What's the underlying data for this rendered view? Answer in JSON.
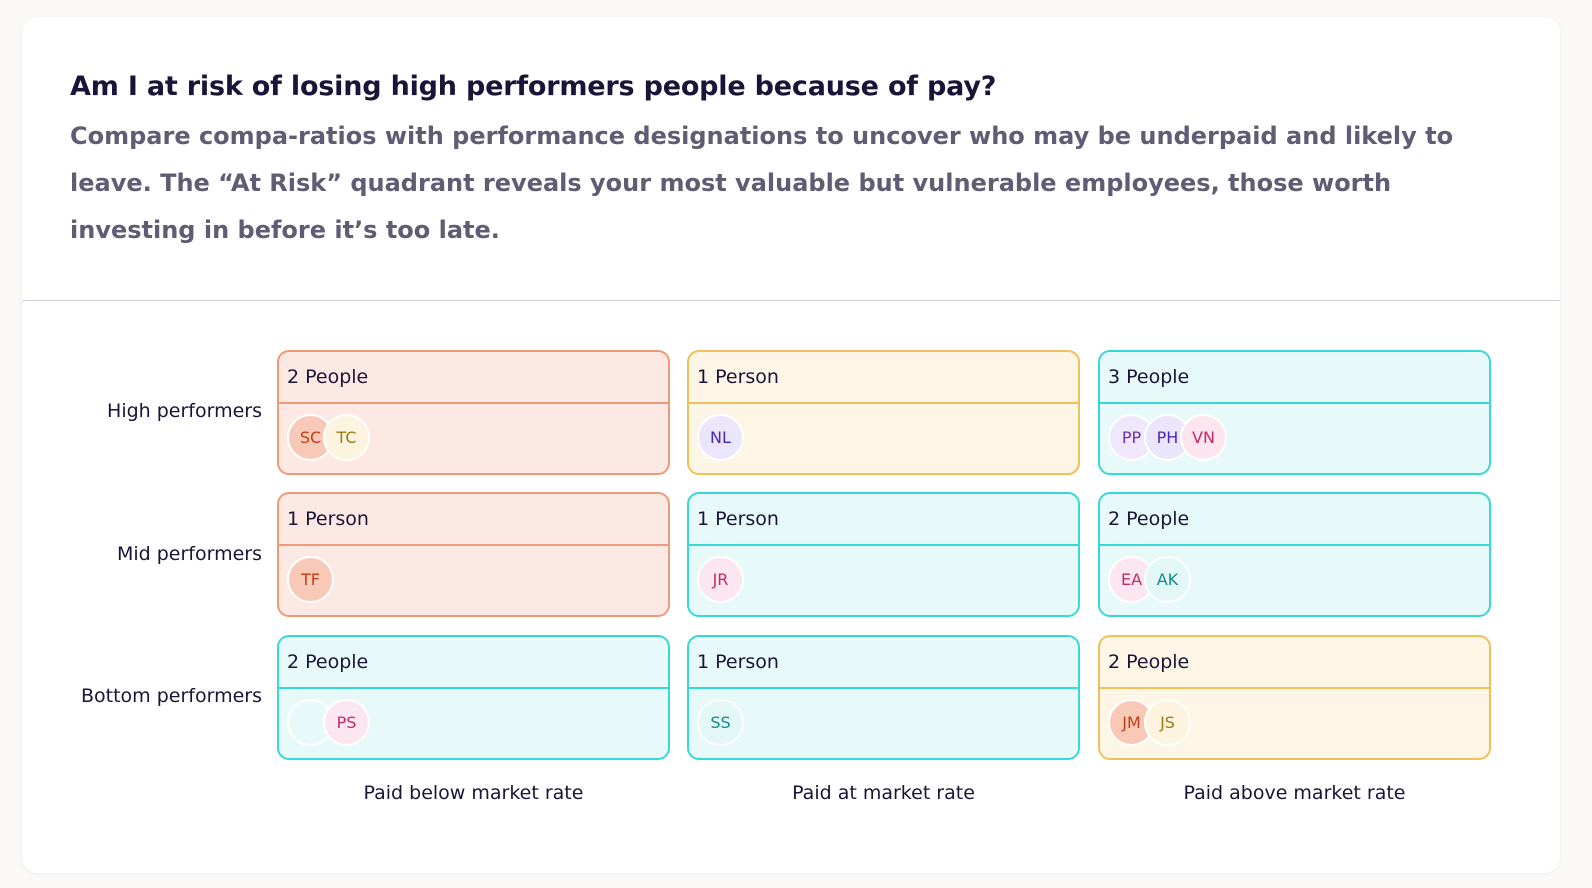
{
  "question": {
    "title": "Am I at risk of losing high performers people because of pay?",
    "description": "Compare compa-ratios with performance designations to uncover who may be underpaid and likely to leave. The “At Risk” quadrant reveals your most valuable but vulnerable employees, those worth investing in before it’s too late."
  },
  "rows": [
    "High performers",
    "Mid performers",
    "Bottom performers"
  ],
  "columns": [
    "Paid below market rate",
    "Paid at market rate",
    "Paid above market rate"
  ],
  "colors": {
    "coral_border": "#f0987a",
    "coral_fill": "#fde9e3",
    "yellow_border": "#f1c05a",
    "yellow_fill": "#fdf5e6",
    "teal_border": "#37d8d8",
    "teal_fill": "#e7f9f9"
  },
  "grid": [
    [
      {
        "count_label": "2 People",
        "tone": "coral",
        "avatars": [
          {
            "initials": "SC",
            "bg": "#f9c9b7",
            "fg": "#c43d16"
          },
          {
            "initials": "TC",
            "bg": "#fcf4df",
            "fg": "#9a7a14"
          }
        ]
      },
      {
        "count_label": "1 Person",
        "tone": "yellow",
        "avatars": [
          {
            "initials": "NL",
            "bg": "#ece6fc",
            "fg": "#4c27b5"
          }
        ]
      },
      {
        "count_label": "3 People",
        "tone": "teal",
        "avatars": [
          {
            "initials": "PP",
            "bg": "#efe7fb",
            "fg": "#6a2eb8"
          },
          {
            "initials": "PH",
            "bg": "#ebe5fb",
            "fg": "#4c27b5"
          },
          {
            "initials": "VN",
            "bg": "#fce5ee",
            "fg": "#c32a6a"
          }
        ]
      }
    ],
    [
      {
        "count_label": "1 Person",
        "tone": "coral",
        "avatars": [
          {
            "initials": "TF",
            "bg": "#f9c9b7",
            "fg": "#c43d16"
          }
        ]
      },
      {
        "count_label": "1 Person",
        "tone": "teal",
        "avatars": [
          {
            "initials": "JR",
            "bg": "#fce6ef",
            "fg": "#c32a6a"
          }
        ]
      },
      {
        "count_label": "2 People",
        "tone": "teal",
        "avatars": [
          {
            "initials": "EA",
            "bg": "#fce6ef",
            "fg": "#c32a6a"
          },
          {
            "initials": "AK",
            "bg": "#e3f7f6",
            "fg": "#0f8b8b"
          }
        ]
      }
    ],
    [
      {
        "count_label": "2 People",
        "tone": "teal",
        "avatars": [
          {
            "initials": "",
            "bg": "#e7f9f9",
            "fg": "#0f8b8b"
          },
          {
            "initials": "PS",
            "bg": "#fce6ef",
            "fg": "#c32a6a"
          }
        ]
      },
      {
        "count_label": "1 Person",
        "tone": "teal",
        "avatars": [
          {
            "initials": "SS",
            "bg": "#e3f7f6",
            "fg": "#0f8b8b"
          }
        ]
      },
      {
        "count_label": "2 People",
        "tone": "yellow",
        "avatars": [
          {
            "initials": "JM",
            "bg": "#f9c9b7",
            "fg": "#c43d16"
          },
          {
            "initials": "JS",
            "bg": "#fcf4df",
            "fg": "#9a7a14"
          }
        ]
      }
    ]
  ]
}
